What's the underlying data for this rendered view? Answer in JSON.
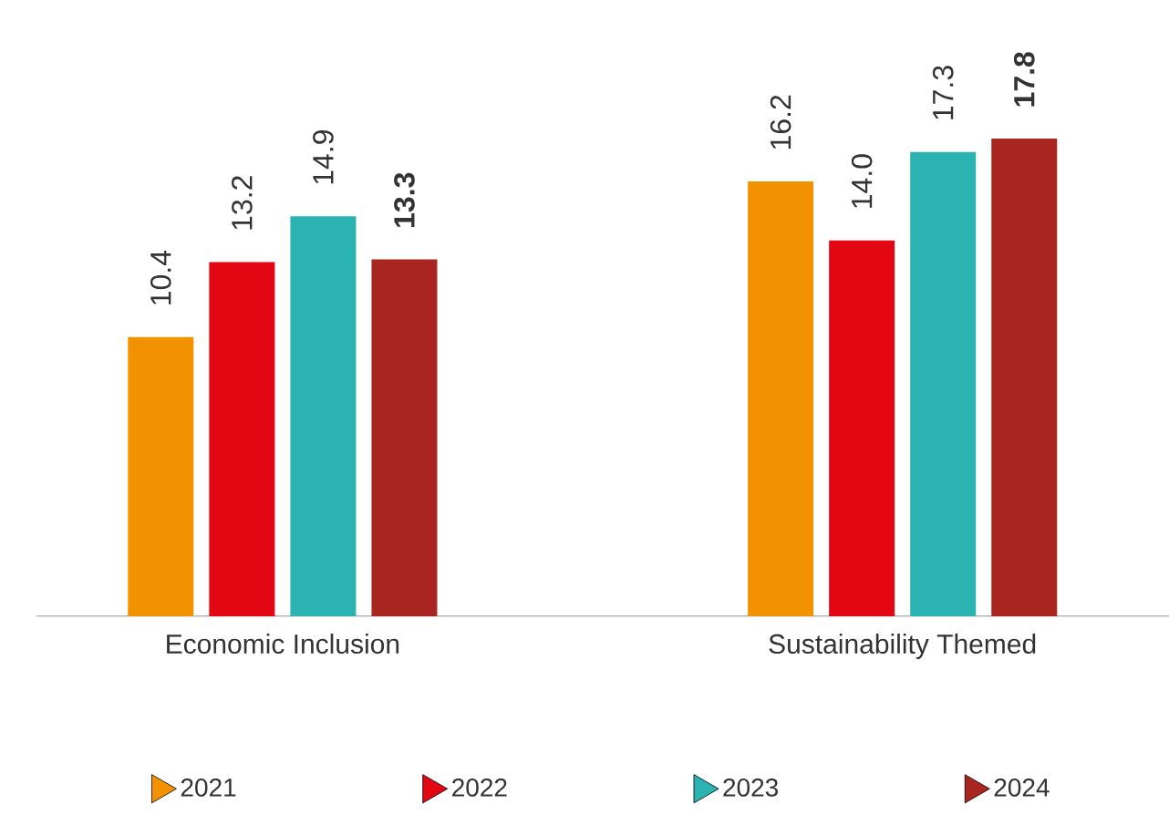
{
  "chart_data": {
    "type": "bar",
    "categories": [
      "Economic Inclusion",
      "Sustainability Themed"
    ],
    "series": [
      {
        "name": "2021",
        "color": "#f39200",
        "values": [
          10.4,
          16.2
        ],
        "value_labels": [
          "10.4",
          "16.2"
        ]
      },
      {
        "name": "2022",
        "color": "#e30613",
        "values": [
          13.2,
          14.0
        ],
        "value_labels": [
          "13.2",
          "14.0"
        ]
      },
      {
        "name": "2023",
        "color": "#2ab3b1",
        "values": [
          14.9,
          17.3
        ],
        "value_labels": [
          "14.9",
          "17.3"
        ]
      },
      {
        "name": "2024",
        "color": "#a8261f",
        "values": [
          13.3,
          17.8
        ],
        "value_labels": [
          "**13.3**",
          "**17.8**"
        ]
      }
    ],
    "legend": "bottom"
  }
}
